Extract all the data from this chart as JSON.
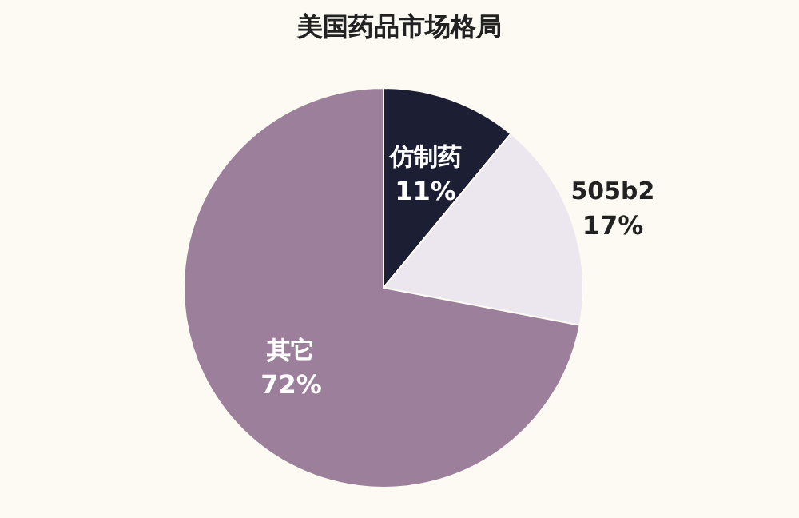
{
  "chart_data": {
    "type": "pie",
    "title": "美国药品市场格局",
    "categories": [
      "仿制药",
      "505b2",
      "其它"
    ],
    "values": [
      11,
      17,
      72
    ],
    "colors": [
      "#1c1f33",
      "#ece6ee",
      "#9c7f9a"
    ],
    "value_labels": [
      "11%",
      "17%",
      "72%"
    ]
  }
}
